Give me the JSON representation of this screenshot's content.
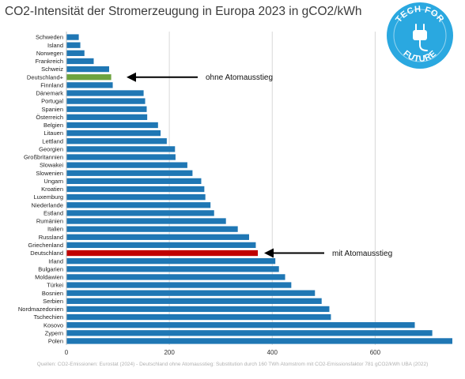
{
  "title": "CO2-Intensität der Stromerzeugung in Europa 2023 in gCO2/kWh",
  "logo": {
    "line1": "TECH FOR",
    "line2": "FUTURE",
    "icon": "plug-icon",
    "color": "#2aa8e0"
  },
  "source": "Quellen: CO2-Emissionen: Eurostat (2024) - Deutschland ohne Atomausstieg: Substitution durch 160 TWh Atomstrom mit CO2-Emissionsfaktor 781 gCO2/kWh UBA (2022)",
  "chart_data": {
    "type": "bar",
    "orientation": "horizontal",
    "title": "CO2-Intensität der Stromerzeugung in Europa 2023 in gCO2/kWh",
    "categories": [
      "Schweden",
      "Island",
      "Norwegen",
      "Frankreich",
      "Schweiz",
      "Deutschland+",
      "Finnland",
      "Dänemark",
      "Portugal",
      "Spanien",
      "Österreich",
      "Belgien",
      "Litauen",
      "Lettland",
      "Georgien",
      "Großbritannien",
      "Slowakei",
      "Slowenien",
      "Ungarn",
      "Kroatien",
      "Luxemburg",
      "Niederlande",
      "Estland",
      "Rumänien",
      "Italien",
      "Russland",
      "Griechenland",
      "Deutschland",
      "Irland",
      "Bulgarien",
      "Moldawien",
      "Türkei",
      "Bosnien",
      "Serbien",
      "Nordmazedonien",
      "Tschechien",
      "Kosovo",
      "Zypern",
      "Polen"
    ],
    "values": [
      24,
      27,
      35,
      53,
      83,
      87,
      90,
      150,
      153,
      156,
      157,
      178,
      183,
      195,
      211,
      212,
      235,
      245,
      262,
      268,
      270,
      280,
      287,
      310,
      333,
      355,
      368,
      372,
      406,
      413,
      425,
      437,
      483,
      496,
      511,
      514,
      677,
      711,
      750
    ],
    "colors": {
      "default": "#1f77b4",
      "Deutschland+": "#6da33f",
      "Deutschland": "#c00000"
    },
    "xlim": [
      0,
      750
    ],
    "xticks": [
      0,
      200,
      400,
      600
    ],
    "grid": true,
    "annotations": [
      {
        "text": "ohne Atomausstieg",
        "category": "Deutschland+"
      },
      {
        "text": "mit Atomausstieg",
        "category": "Deutschland"
      }
    ]
  }
}
